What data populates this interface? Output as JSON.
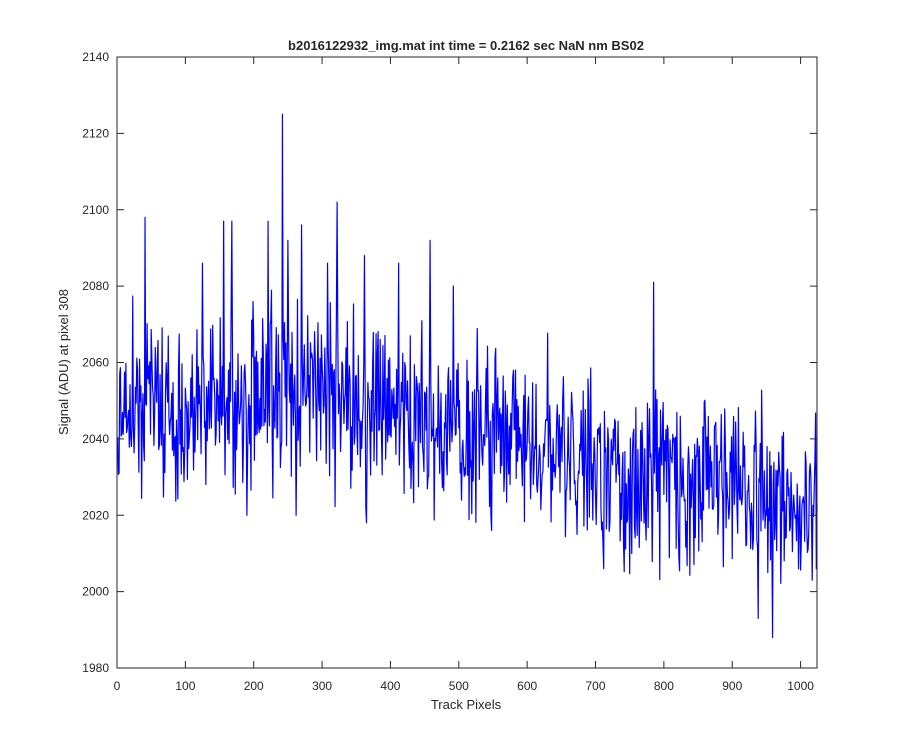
{
  "chart_data": {
    "type": "line",
    "title": "b2016122932_img.mat int time = 0.2162 sec  NaN nm BS02",
    "xlabel": "Track Pixels",
    "ylabel": "Signal (ADU) at pixel 308",
    "xlim": [
      0,
      1024
    ],
    "ylim": [
      1980,
      2140
    ],
    "xticks": [
      0,
      100,
      200,
      300,
      400,
      500,
      600,
      700,
      800,
      900,
      1000
    ],
    "yticks": [
      1980,
      2000,
      2020,
      2040,
      2060,
      2080,
      2100,
      2120,
      2140
    ],
    "grid": false,
    "legend": "none",
    "colors": {
      "series": "#0000ff",
      "axes": "#262626"
    },
    "noise_amplitude": 11,
    "series": [
      {
        "x": [
          0,
          20,
          40,
          60,
          80,
          100,
          120,
          140,
          160,
          180,
          200,
          220,
          240,
          260,
          280,
          300,
          320,
          340,
          360,
          380,
          400,
          420,
          440,
          460,
          480,
          500,
          520,
          540,
          560,
          580,
          600,
          620,
          640,
          660,
          680,
          700,
          720,
          740,
          760,
          780,
          800,
          820,
          840,
          860,
          880,
          900,
          920,
          940,
          960,
          980,
          1000,
          1023
        ],
        "values": [
          2046,
          2048,
          2049,
          2047,
          2045,
          2046,
          2048,
          2050,
          2050,
          2049,
          2050,
          2051,
          2052,
          2051,
          2052,
          2053,
          2052,
          2050,
          2049,
          2049,
          2049,
          2048,
          2046,
          2045,
          2043,
          2042,
          2042,
          2041,
          2040,
          2039,
          2038,
          2037,
          2036,
          2035,
          2034,
          2033,
          2032,
          2032,
          2031,
          2031,
          2030,
          2029,
          2029,
          2028,
          2028,
          2027,
          2026,
          2025,
          2024,
          2024,
          2024,
          2024
        ]
      }
    ],
    "spikes": [
      {
        "x": 41,
        "y": 2098
      },
      {
        "x": 242,
        "y": 2125
      },
      {
        "x": 322,
        "y": 2102
      },
      {
        "x": 156,
        "y": 2097
      },
      {
        "x": 168,
        "y": 2097
      },
      {
        "x": 221,
        "y": 2097
      },
      {
        "x": 458,
        "y": 2092
      },
      {
        "x": 785,
        "y": 2081
      },
      {
        "x": 250,
        "y": 2092
      },
      {
        "x": 270,
        "y": 2096
      },
      {
        "x": 125,
        "y": 2086
      },
      {
        "x": 308,
        "y": 2086
      },
      {
        "x": 362,
        "y": 2088
      },
      {
        "x": 412,
        "y": 2086
      },
      {
        "x": 492,
        "y": 2080
      },
      {
        "x": 938,
        "y": 1993
      },
      {
        "x": 959,
        "y": 1988
      },
      {
        "x": 712,
        "y": 2006
      },
      {
        "x": 1017,
        "y": 2003
      },
      {
        "x": 1023,
        "y": 2006
      },
      {
        "x": 952,
        "y": 2005
      },
      {
        "x": 753,
        "y": 2010
      },
      {
        "x": 262,
        "y": 2020
      },
      {
        "x": 190,
        "y": 2020
      },
      {
        "x": 365,
        "y": 2018
      },
      {
        "x": 548,
        "y": 2016
      },
      {
        "x": 673,
        "y": 2015
      },
      {
        "x": 920,
        "y": 2012
      }
    ]
  }
}
